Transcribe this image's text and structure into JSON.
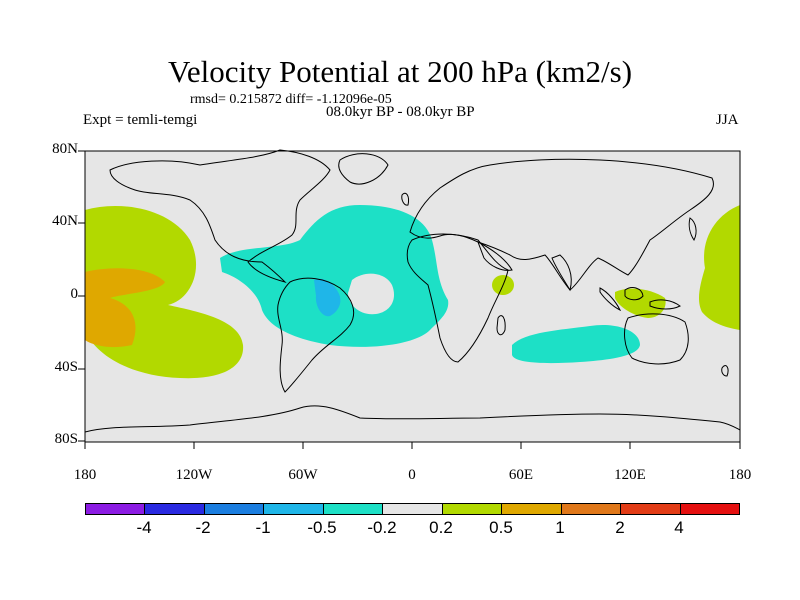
{
  "title": "Velocity Potential at 200 hPa (km2/s)",
  "rmsd_line": "rmsd= 0.215872 diff= -1.12096e-05",
  "period": "08.0kyr BP - 08.0kyr BP",
  "experiment": "Expt = temli-temgi",
  "season": "JJA",
  "y_axis": [
    "80N",
    "40N",
    "0",
    "40S",
    "80S"
  ],
  "x_axis": [
    "180",
    "120W",
    "60W",
    "0",
    "60E",
    "120E",
    "180"
  ],
  "colors": {
    "ocean": "#e6e6e6",
    "neg_0_2_to_0_5": "#1de0c6",
    "neg_1_to_0_5": "#1fb6e8",
    "pos_0_2_to_0_5": "#b2d900",
    "pos_0_5_to_1": "#dfa800"
  },
  "colorbar": {
    "labels": [
      "-4",
      "-2",
      "-1",
      "-0.5",
      "-0.2",
      "0.2",
      "0.5",
      "1",
      "2",
      "4"
    ],
    "swatches": [
      "#8c1ce3",
      "#2a2ae1",
      "#1b7ee0",
      "#1fb6e8",
      "#1de0c6",
      "#e6e6e6",
      "#b2d900",
      "#dfa800",
      "#e0781a",
      "#e23c16",
      "#e51010"
    ]
  }
}
